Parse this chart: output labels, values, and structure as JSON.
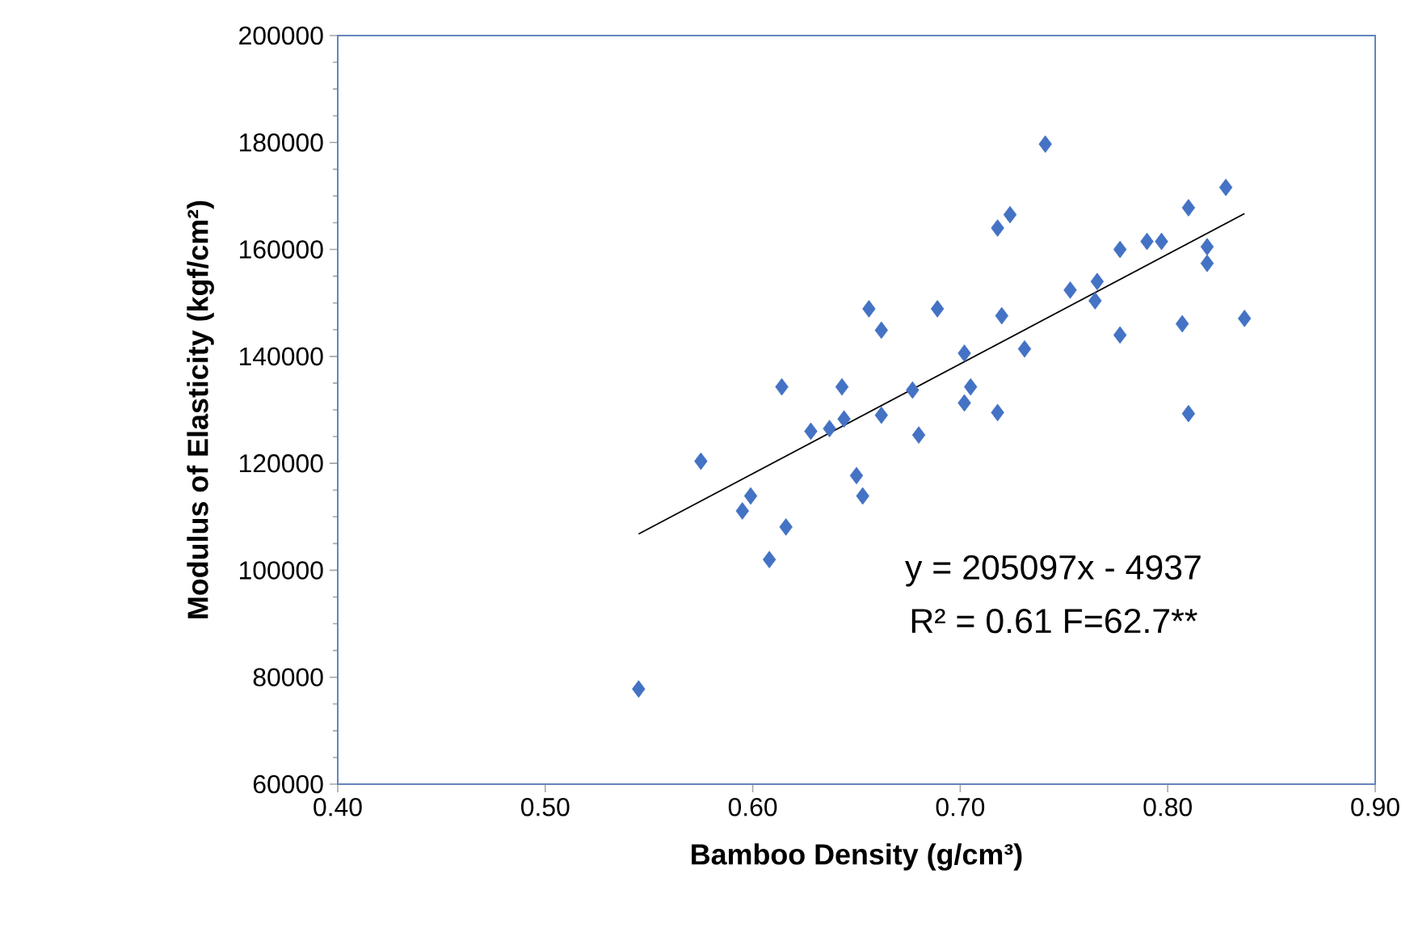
{
  "chart_data": {
    "type": "scatter",
    "xlabel": "Bamboo Density (g/cm³)",
    "ylabel": "Modulus of Elasticity (kgf/cm²)",
    "xlim": [
      0.4,
      0.9
    ],
    "ylim": [
      60000,
      200000
    ],
    "xticks": [
      {
        "value": 0.4,
        "label": "0.40"
      },
      {
        "value": 0.5,
        "label": "0.50"
      },
      {
        "value": 0.6,
        "label": "0.60"
      },
      {
        "value": 0.7,
        "label": "0.70"
      },
      {
        "value": 0.8,
        "label": "0.80"
      },
      {
        "value": 0.9,
        "label": "0.90"
      }
    ],
    "yticks": [
      60000,
      80000,
      100000,
      120000,
      140000,
      160000,
      180000,
      200000
    ],
    "grid": false,
    "legend": false,
    "marker": "diamond",
    "series": [
      {
        "color": "#4472c4",
        "x": [
          0.545,
          0.575,
          0.599,
          0.595,
          0.616,
          0.608,
          0.614,
          0.628,
          0.637,
          0.644,
          0.643,
          0.65,
          0.653,
          0.662,
          0.656,
          0.662,
          0.677,
          0.68,
          0.689,
          0.702,
          0.702,
          0.705,
          0.741,
          0.718,
          0.724,
          0.72,
          0.731,
          0.718,
          0.753,
          0.766,
          0.765,
          0.777,
          0.777,
          0.79,
          0.797,
          0.81,
          0.828,
          0.819,
          0.819,
          0.807,
          0.837,
          0.81
        ],
        "values": [
          77800,
          120400,
          113900,
          111100,
          108100,
          102000,
          134300,
          126000,
          126500,
          128300,
          134300,
          117700,
          113900,
          129000,
          148900,
          144900,
          133700,
          125300,
          148900,
          140600,
          131300,
          134300,
          179700,
          164000,
          166500,
          147600,
          141400,
          129500,
          152400,
          154000,
          150400,
          144000,
          160000,
          161500,
          161500,
          167800,
          171600,
          160500,
          157400,
          146100,
          147100,
          129300
        ]
      },
      {
        "type": "line",
        "color": "#000000",
        "marker": "none",
        "line_style": "solid",
        "x": [
          0.545,
          0.837
        ],
        "values": [
          106800,
          166700
        ]
      }
    ],
    "annotations": [
      "y = 205097x - 4937",
      "R² = 0.61 F=62.7**"
    ]
  }
}
